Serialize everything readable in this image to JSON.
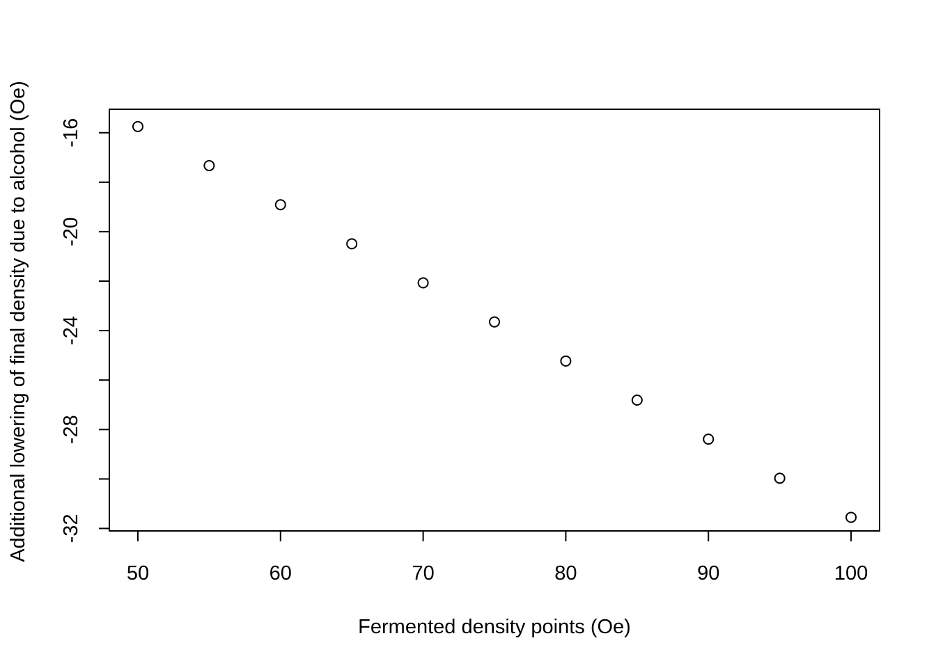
{
  "chart_data": {
    "type": "scatter",
    "title": "",
    "xlabel": "Fermented density points (Oe)",
    "ylabel": "Additional lowering of final density due to alcohol (Oe)",
    "x": [
      50,
      55,
      60,
      65,
      70,
      75,
      80,
      85,
      90,
      95,
      100
    ],
    "y": [
      -15.75,
      -17.33,
      -18.91,
      -20.49,
      -22.07,
      -23.65,
      -25.23,
      -26.81,
      -28.39,
      -29.97,
      -31.55
    ],
    "xlim": [
      48,
      102
    ],
    "ylim": [
      -32.1,
      -15.05
    ],
    "xticks": [
      50,
      60,
      70,
      80,
      90,
      100
    ],
    "xtick_labels": [
      "50",
      "60",
      "70",
      "80",
      "90",
      "100"
    ],
    "yticks": [
      -16,
      -18,
      -20,
      -22,
      -24,
      -26,
      -28,
      -30,
      -32
    ],
    "ytick_labels": [
      "-16",
      "",
      "-20",
      "",
      "-24",
      "",
      "-28",
      "",
      "-32"
    ],
    "marker": "open-circle",
    "grid": false,
    "legend": "none",
    "colors": {
      "marker": "#000000",
      "axes": "#000000",
      "background": "#ffffff"
    }
  }
}
